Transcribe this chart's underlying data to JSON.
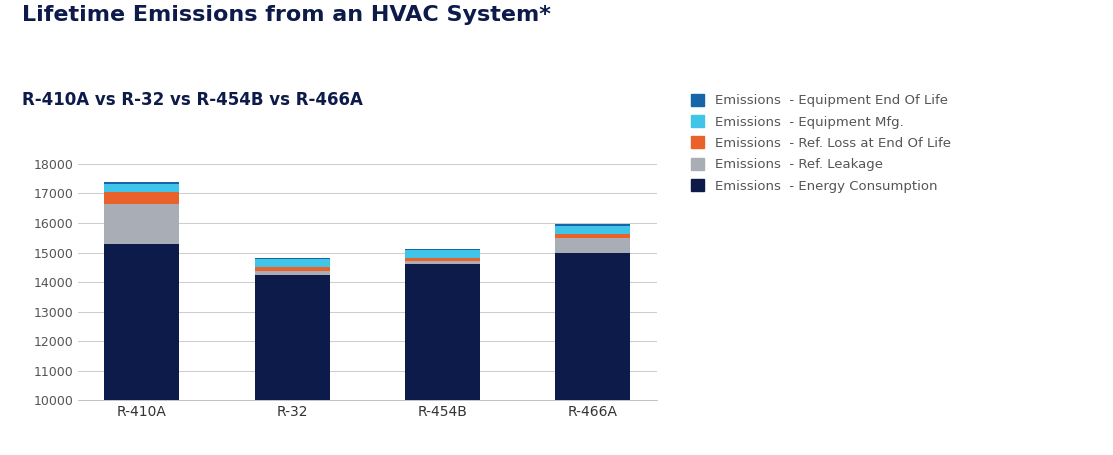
{
  "title": "Lifetime Emissions from an HVAC System*",
  "subtitle": "R-410A vs R-32 vs R-454B vs R-466A",
  "categories": [
    "R-410A",
    "R-32",
    "R-454B",
    "R-466A"
  ],
  "series": [
    {
      "label": "Emissions  - Energy Consumption",
      "color": "#0d1b4b",
      "values": [
        15300,
        14250,
        14600,
        15000
      ]
    },
    {
      "label": "Emissions  - Ref. Leakage",
      "color": "#a9adb5",
      "values": [
        1350,
        130,
        130,
        500
      ]
    },
    {
      "label": "Emissions  - Ref. Loss at End Of Life",
      "color": "#e8622a",
      "values": [
        400,
        130,
        80,
        130
      ]
    },
    {
      "label": "Emissions  - Equipment Mfg.",
      "color": "#40c4e8",
      "values": [
        270,
        270,
        270,
        270
      ]
    },
    {
      "label": "Emissions  - Equipment End Of Life",
      "color": "#1565a8",
      "values": [
        50,
        50,
        50,
        50
      ]
    }
  ],
  "ylim": [
    10000,
    18000
  ],
  "yticks": [
    10000,
    11000,
    12000,
    13000,
    14000,
    15000,
    16000,
    17000,
    18000
  ],
  "background_color": "#ffffff",
  "title_fontsize": 16,
  "subtitle_fontsize": 12,
  "bar_width": 0.5
}
